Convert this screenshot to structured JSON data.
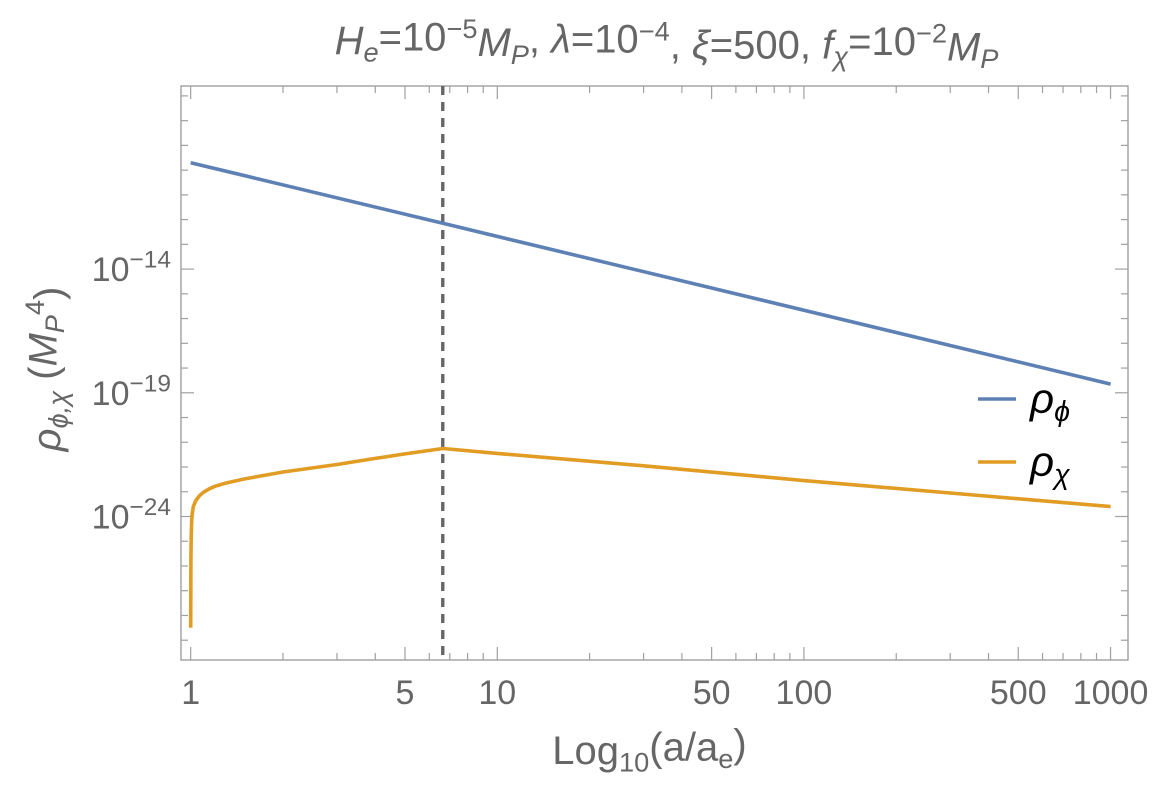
{
  "chart_data": {
    "type": "line",
    "title": {
      "segments": [
        {
          "t": "H",
          "i": true
        },
        {
          "t": "e",
          "sub": true,
          "i": true
        },
        {
          "t": "=10"
        },
        {
          "t": "−5",
          "sup": true
        },
        {
          "t": "M",
          "i": true
        },
        {
          "t": "P",
          "sub": true,
          "i": true
        },
        {
          "t": ", "
        },
        {
          "t": "λ",
          "i": true
        },
        {
          "t": "=10"
        },
        {
          "t": "−4",
          "sup": true
        },
        {
          "t": ", "
        },
        {
          "t": "ξ",
          "i": true
        },
        {
          "t": "=500, "
        },
        {
          "t": "f",
          "i": true
        },
        {
          "t": "χ",
          "sub": true,
          "i": true
        },
        {
          "t": "=10"
        },
        {
          "t": "−2",
          "sup": true
        },
        {
          "t": "M",
          "i": true
        },
        {
          "t": "P",
          "sub": true,
          "i": true
        }
      ]
    },
    "xlabel": {
      "segments": [
        {
          "t": "Log"
        },
        {
          "t": "10",
          "sub": true
        },
        {
          "t": "(a/a"
        },
        {
          "t": "e",
          "sub": true
        },
        {
          "t": ")"
        }
      ]
    },
    "ylabel": {
      "segments": [
        {
          "t": "ρ",
          "i": true
        },
        {
          "t": "ϕ,χ",
          "sub": true,
          "i": true
        },
        {
          "t": " ("
        },
        {
          "t": "M",
          "i": true
        },
        {
          "t": "P",
          "sub": true,
          "i": true
        },
        {
          "t": "4",
          "sup": true
        },
        {
          "t": ")"
        }
      ]
    },
    "x_scale": "log",
    "y_scale": "log",
    "xlim": [
      0.93,
      1140
    ],
    "ylim_log10": [
      -29.8,
      -6.6
    ],
    "x_ticks": [
      {
        "value": 1,
        "label": "1"
      },
      {
        "value": 5,
        "label": "5"
      },
      {
        "value": 10,
        "label": "10"
      },
      {
        "value": 50,
        "label": "50"
      },
      {
        "value": 100,
        "label": "100"
      },
      {
        "value": 500,
        "label": "500"
      },
      {
        "value": 1000,
        "label": "1000"
      }
    ],
    "y_ticks": [
      {
        "log10": -14,
        "base": "10",
        "exp": "−14"
      },
      {
        "log10": -19,
        "base": "10",
        "exp": "−19"
      },
      {
        "log10": -24,
        "base": "10",
        "exp": "−24"
      }
    ],
    "vertical_line": {
      "x": 6.64,
      "style": "dashed",
      "color": "#666666"
    },
    "series": [
      {
        "name": "ρϕ",
        "legend": [
          {
            "t": "ρ",
            "i": true
          },
          {
            "t": "ϕ",
            "sub": true,
            "i": true
          }
        ],
        "color": "#5E81B5",
        "x": [
          1,
          6.64,
          1000
        ],
        "log10_y": [
          -9.7,
          -12.15,
          -18.65
        ]
      },
      {
        "name": "ρχ",
        "legend": [
          {
            "t": "ρ",
            "i": true
          },
          {
            "t": "χ",
            "sub": true,
            "i": true
          }
        ],
        "color": "#E19C24",
        "x": [
          1.0,
          1.001,
          1.002,
          1.004,
          1.007,
          1.01,
          1.02,
          1.04,
          1.07,
          1.1,
          1.15,
          1.2,
          1.3,
          1.5,
          2,
          3,
          4,
          5,
          6.64,
          10,
          30,
          100,
          300,
          1000
        ],
        "log10_y": [
          -28.5,
          -27.2,
          -25.8,
          -24.8,
          -24.25,
          -23.95,
          -23.6,
          -23.35,
          -23.15,
          -23.02,
          -22.88,
          -22.78,
          -22.65,
          -22.48,
          -22.2,
          -21.9,
          -21.65,
          -21.47,
          -21.25,
          -21.45,
          -21.95,
          -22.55,
          -23.05,
          -23.6
        ]
      }
    ],
    "legend_position": "right",
    "frame_color": "#A0A0A0",
    "text_color": "#666666"
  }
}
